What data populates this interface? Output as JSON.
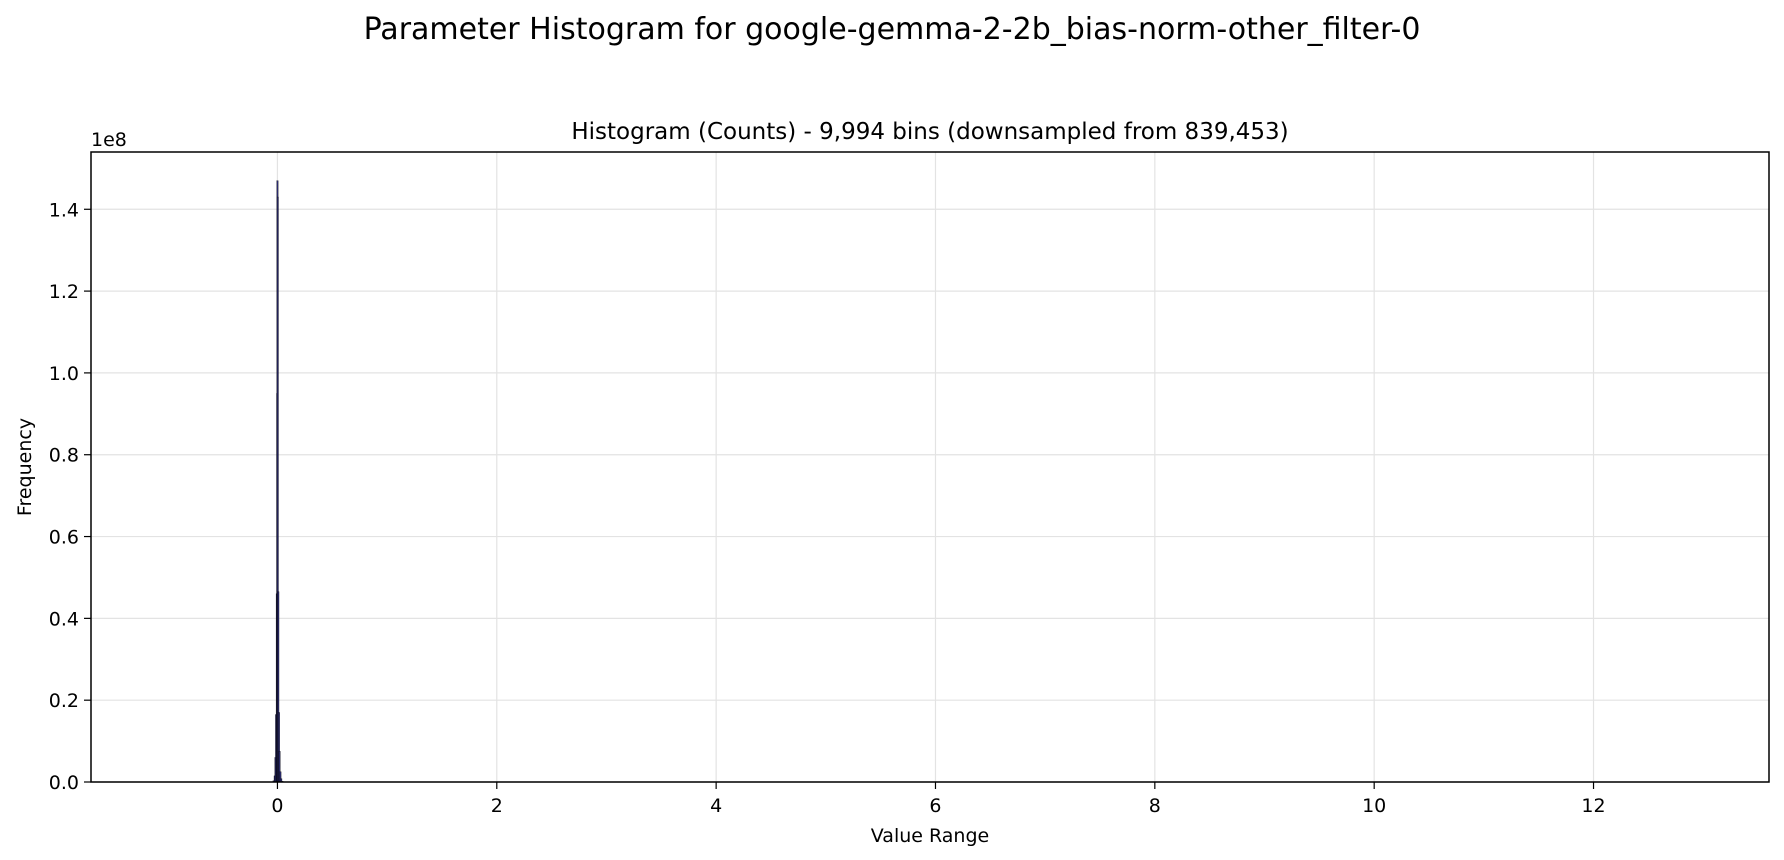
{
  "figure_title": "Parameter Histogram for google-gemma-2-2b_bias-norm-other_filter-0",
  "chart_data": {
    "type": "bar",
    "title": "Histogram (Counts) - 9,994 bins (downsampled from 839,453)",
    "xlabel": "Value Range",
    "ylabel": "Frequency",
    "y_scale_label": "1e8",
    "xlim": [
      -1.7,
      13.6
    ],
    "ylim": [
      0,
      154000000
    ],
    "x_ticks": [
      0,
      2,
      4,
      6,
      8,
      10,
      12
    ],
    "x_tick_labels": [
      "0",
      "2",
      "4",
      "6",
      "8",
      "10",
      "12"
    ],
    "y_ticks": [
      0,
      20000000,
      40000000,
      60000000,
      80000000,
      100000000,
      120000000,
      140000000
    ],
    "y_tick_labels": [
      "0.0",
      "0.2",
      "0.4",
      "0.6",
      "0.8",
      "1.0",
      "1.2",
      "1.4"
    ],
    "grid": true,
    "bar_color": "#2b2b6e",
    "bins": [
      {
        "x": -0.035,
        "value": 300000
      },
      {
        "x": -0.025,
        "value": 1500000
      },
      {
        "x": -0.018,
        "value": 6000000
      },
      {
        "x": -0.012,
        "value": 16500000
      },
      {
        "x": -0.006,
        "value": 46000000
      },
      {
        "x": -0.002,
        "value": 95000000
      },
      {
        "x": 0.0,
        "value": 147000000
      },
      {
        "x": 0.003,
        "value": 143000000
      },
      {
        "x": 0.008,
        "value": 46500000
      },
      {
        "x": 0.014,
        "value": 17000000
      },
      {
        "x": 0.02,
        "value": 7500000
      },
      {
        "x": 0.027,
        "value": 2500000
      },
      {
        "x": 0.035,
        "value": 800000
      },
      {
        "x": 0.045,
        "value": 200000
      }
    ]
  }
}
